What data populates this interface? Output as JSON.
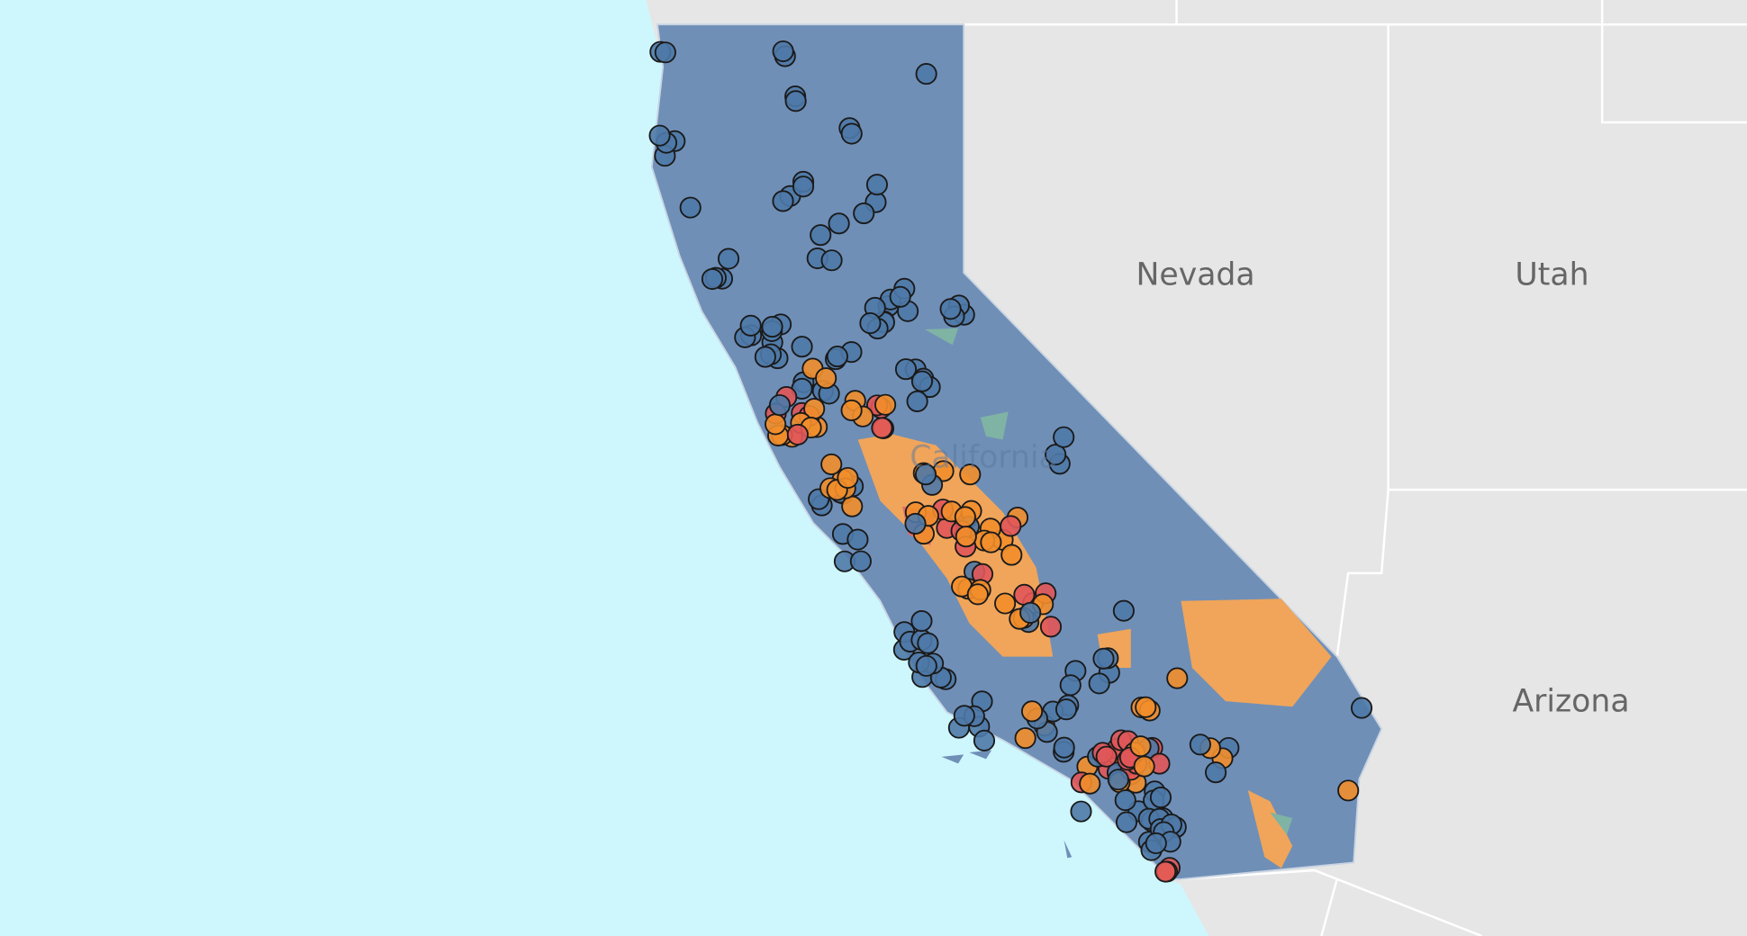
{
  "labels": {
    "nevada": "Nevada",
    "utah": "Utah",
    "arizona": "Arizona",
    "california": "California"
  }
}
